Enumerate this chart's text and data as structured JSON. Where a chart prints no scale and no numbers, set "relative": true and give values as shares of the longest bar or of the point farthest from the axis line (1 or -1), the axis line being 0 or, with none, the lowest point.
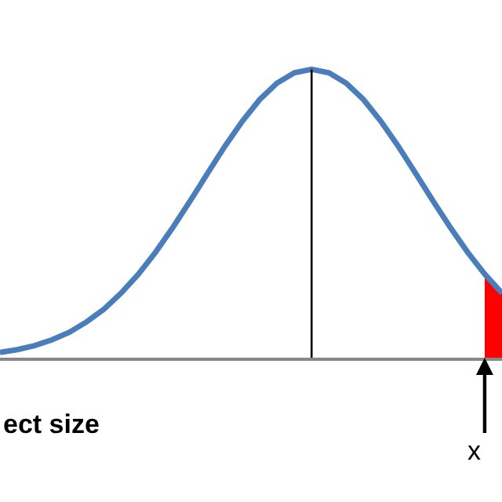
{
  "chart_data": {
    "type": "line",
    "relative": true,
    "categories": [
      null,
      null,
      null,
      null,
      null,
      null,
      null,
      null,
      null,
      null,
      null,
      null,
      null,
      null,
      null,
      null,
      null,
      null,
      null,
      null,
      null,
      null,
      null,
      null,
      null,
      null,
      null,
      null,
      null,
      null
    ],
    "series": [
      {
        "color": "#4a7ebb",
        "values": [
          0.018,
          0.028,
          0.042,
          0.062,
          0.088,
          0.124,
          0.168,
          0.224,
          0.29,
          0.367,
          0.453,
          0.545,
          0.64,
          0.734,
          0.82,
          0.895,
          0.952,
          0.988,
          1,
          0.988,
          0.952,
          0.895,
          0.82,
          0.734,
          0.64,
          0.545,
          0.453,
          0.367,
          0.29,
          0.224
        ]
      },
      {
        "type": "area",
        "color": "#ff0000",
        "values": [
          null,
          null,
          null,
          null,
          null,
          null,
          null,
          null,
          null,
          null,
          null,
          null,
          null,
          null,
          null,
          null,
          null,
          null,
          null,
          null,
          null,
          null,
          null,
          null,
          null,
          null,
          null,
          null,
          0.29,
          0.224
        ]
      }
    ],
    "ref_lines": [
      {
        "axis": "x",
        "color": "#000000"
      }
    ],
    "annotations": [
      "ect size",
      "x"
    ],
    "marker": "none",
    "line_style": "solid"
  }
}
